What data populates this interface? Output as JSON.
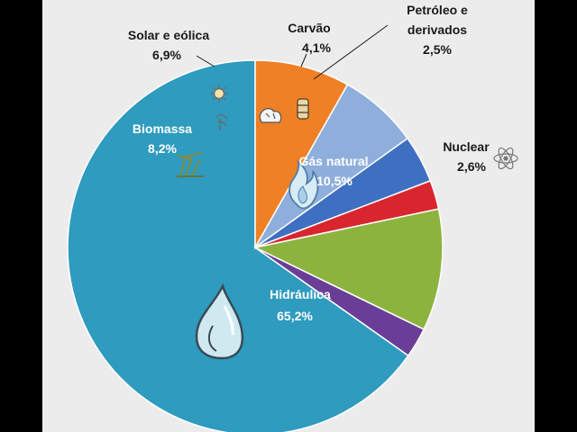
{
  "chart_data": {
    "type": "pie",
    "slices": [
      {
        "key": "hidraulica",
        "name": "Hidráulica",
        "value_label": "65,2%",
        "value": 65.2,
        "color": "#2e9bbf",
        "icon": "water-drop-icon",
        "label_color": "#ffffff"
      },
      {
        "key": "biomassa",
        "name": "Biomassa",
        "value_label": "8,2%",
        "value": 8.2,
        "color": "#ef8026",
        "icon": "sugarcane-icon",
        "label_color": "#ffffff"
      },
      {
        "key": "solar",
        "name": "Solar e eólica",
        "value_label": "6,9%",
        "value": 6.9,
        "color": "#8eaedc",
        "icon": "sun-wind-icon",
        "label_color": "#1a1a1a"
      },
      {
        "key": "carvao",
        "name": "Carvão",
        "value_label": "4,1%",
        "value": 4.1,
        "color": "#3f6fc0",
        "icon": "coal-icon",
        "label_color": "#1a1a1a"
      },
      {
        "key": "petroleo",
        "name_lines": [
          "Petróleo e",
          "derivados"
        ],
        "value_label": "2,5%",
        "value": 2.5,
        "color": "#d9262e",
        "icon": "oil-barrel-icon",
        "label_color": "#1a1a1a"
      },
      {
        "key": "gas",
        "name": "Gás natural",
        "value_label": "10,5%",
        "value": 10.5,
        "color": "#8db33f",
        "icon": "gas-flame-icon",
        "label_color": "#ffffff"
      },
      {
        "key": "nuclear",
        "name": "Nuclear",
        "value_label": "2,6%",
        "value": 2.6,
        "color": "#6a3e96",
        "icon": "atom-icon",
        "label_color": "#1a1a1a"
      }
    ]
  }
}
